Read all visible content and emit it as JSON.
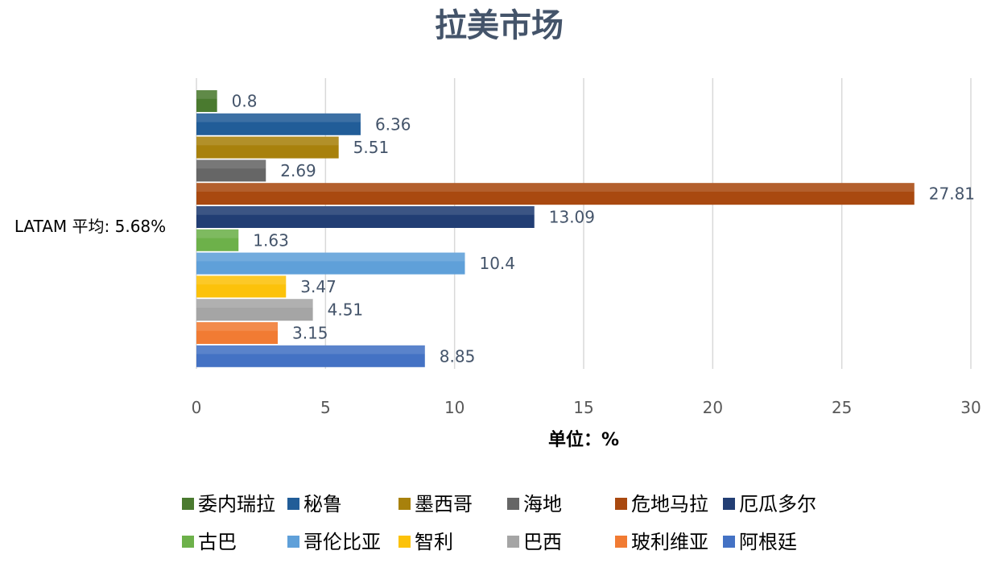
{
  "chart_data": {
    "type": "bar",
    "orientation": "horizontal",
    "title": "拉美市场",
    "xlabel": "单位：%",
    "ylabel": "",
    "category": "LATAM 平均: 5.68%",
    "xlim": [
      0,
      30
    ],
    "xticks": [
      0,
      5,
      10,
      15,
      20,
      25,
      30
    ],
    "grid": true,
    "legend_position": "bottom",
    "series": [
      {
        "name": "委内瑞拉",
        "value": 0.8,
        "color": "#4a7a2f",
        "label": "0.8"
      },
      {
        "name": "秘鲁",
        "value": 6.36,
        "color": "#215d98",
        "label": "6.36"
      },
      {
        "name": "墨西哥",
        "value": 5.51,
        "color": "#a8810c",
        "label": "5.51"
      },
      {
        "name": "海地",
        "value": 2.69,
        "color": "#666666",
        "label": "2.69"
      },
      {
        "name": "危地马拉",
        "value": 27.81,
        "color": "#a94910",
        "label": "27.81"
      },
      {
        "name": "厄瓜多尔",
        "value": 13.09,
        "color": "#223e74",
        "label": "13.09"
      },
      {
        "name": "古巴",
        "value": 1.63,
        "color": "#6db14a",
        "label": "1.63"
      },
      {
        "name": "哥伦比亚",
        "value": 10.4,
        "color": "#5fa0d9",
        "label": "10.4"
      },
      {
        "name": "智利",
        "value": 3.47,
        "color": "#fcc20a",
        "label": "3.47"
      },
      {
        "name": "巴西",
        "value": 4.51,
        "color": "#a5a5a5",
        "label": "4.51"
      },
      {
        "name": "玻利维亚",
        "value": 3.15,
        "color": "#f17b33",
        "label": "3.15"
      },
      {
        "name": "阿根廷",
        "value": 8.85,
        "color": "#4472c4",
        "label": "8.85"
      }
    ]
  }
}
